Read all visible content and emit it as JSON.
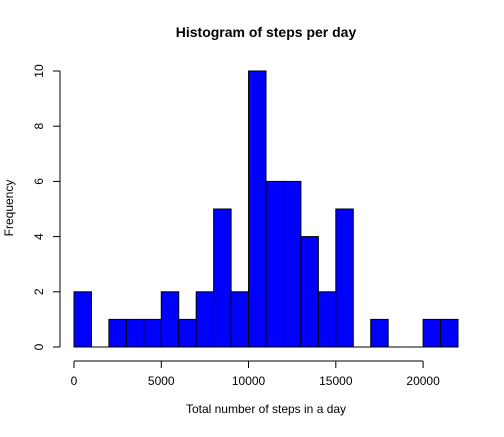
{
  "chart_data": {
    "type": "bar",
    "title": "Histogram of steps per day",
    "xlabel": "Total number of steps in a day",
    "ylabel": "Frequency",
    "bin_width": 1000,
    "bin_starts": [
      0,
      1000,
      2000,
      3000,
      4000,
      5000,
      6000,
      7000,
      8000,
      9000,
      10000,
      11000,
      12000,
      13000,
      14000,
      15000,
      16000,
      17000,
      18000,
      19000,
      20000,
      21000
    ],
    "values": [
      2,
      0,
      1,
      1,
      1,
      2,
      1,
      2,
      5,
      2,
      10,
      6,
      6,
      4,
      2,
      5,
      0,
      1,
      0,
      0,
      1,
      1
    ],
    "xlim": [
      0,
      22000
    ],
    "ylim": [
      0,
      10
    ],
    "x_ticks": [
      0,
      5000,
      10000,
      15000,
      20000
    ],
    "y_ticks": [
      0,
      2,
      4,
      6,
      8,
      10
    ],
    "bar_fill": "#0000ff",
    "bar_stroke": "#000000",
    "grid": false,
    "legend": "none"
  }
}
